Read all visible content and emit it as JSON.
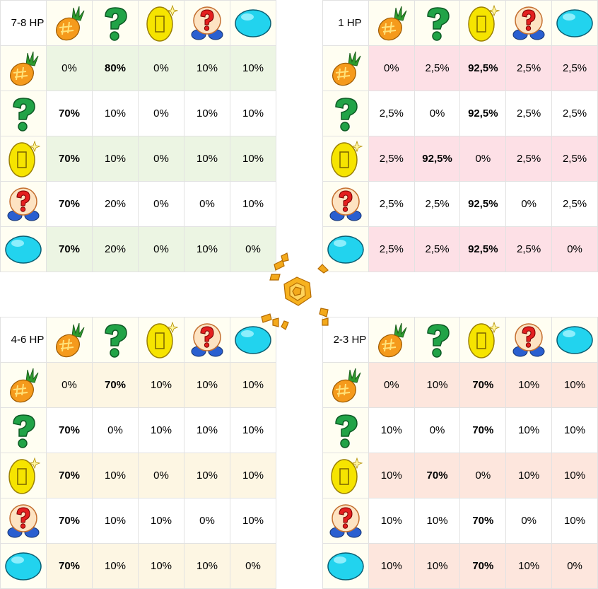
{
  "items": [
    "pineapple",
    "question-mark",
    "coin",
    "mushroom",
    "water-orb"
  ],
  "tables": [
    {
      "id": "tl",
      "label": "7-8 HP",
      "tint": "#ecf5e3",
      "rows": [
        [
          "0%",
          "80%",
          "0%",
          "10%",
          "10%"
        ],
        [
          "70%",
          "10%",
          "0%",
          "10%",
          "10%"
        ],
        [
          "70%",
          "10%",
          "0%",
          "10%",
          "10%"
        ],
        [
          "70%",
          "20%",
          "0%",
          "0%",
          "10%"
        ],
        [
          "70%",
          "20%",
          "0%",
          "10%",
          "0%"
        ]
      ]
    },
    {
      "id": "tr",
      "label": "1 HP",
      "tint": "#fde0e6",
      "rows": [
        [
          "0%",
          "2,5%",
          "92,5%",
          "2,5%",
          "2,5%"
        ],
        [
          "2,5%",
          "0%",
          "92,5%",
          "2,5%",
          "2,5%"
        ],
        [
          "2,5%",
          "92,5%",
          "0%",
          "2,5%",
          "2,5%"
        ],
        [
          "2,5%",
          "2,5%",
          "92,5%",
          "0%",
          "2,5%"
        ],
        [
          "2,5%",
          "2,5%",
          "92,5%",
          "2,5%",
          "0%"
        ]
      ]
    },
    {
      "id": "bl",
      "label": "4-6 HP",
      "tint": "#fdf6e3",
      "rows": [
        [
          "0%",
          "70%",
          "10%",
          "10%",
          "10%"
        ],
        [
          "70%",
          "0%",
          "10%",
          "10%",
          "10%"
        ],
        [
          "70%",
          "10%",
          "0%",
          "10%",
          "10%"
        ],
        [
          "70%",
          "10%",
          "10%",
          "0%",
          "10%"
        ],
        [
          "70%",
          "10%",
          "10%",
          "10%",
          "0%"
        ]
      ]
    },
    {
      "id": "br",
      "label": "2-3 HP",
      "tint": "#fde6dd",
      "rows": [
        [
          "0%",
          "10%",
          "70%",
          "10%",
          "10%"
        ],
        [
          "10%",
          "0%",
          "70%",
          "10%",
          "10%"
        ],
        [
          "10%",
          "70%",
          "0%",
          "10%",
          "10%"
        ],
        [
          "10%",
          "10%",
          "70%",
          "0%",
          "10%"
        ],
        [
          "10%",
          "10%",
          "70%",
          "10%",
          "0%"
        ]
      ]
    }
  ]
}
